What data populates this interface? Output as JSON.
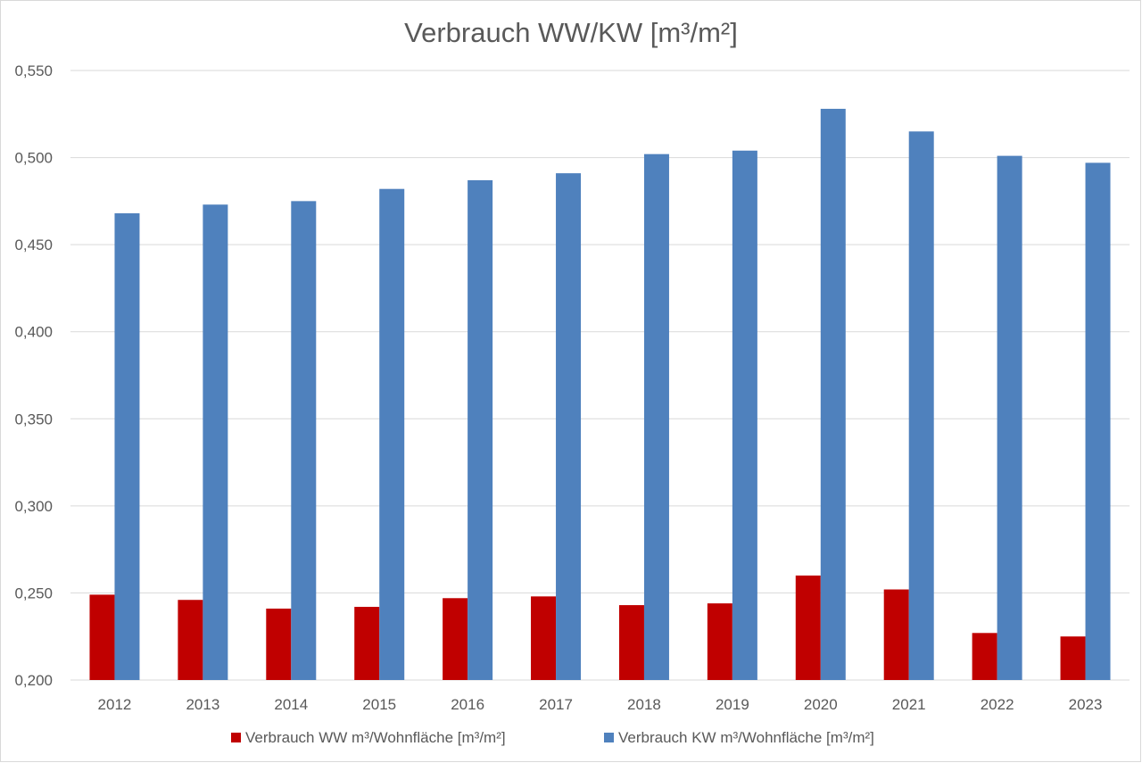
{
  "chart_data": {
    "type": "bar",
    "title": "Verbrauch WW/KW [m³/m²]",
    "xlabel": "",
    "ylabel": "",
    "categories": [
      "2012",
      "2013",
      "2014",
      "2015",
      "2016",
      "2017",
      "2018",
      "2019",
      "2020",
      "2021",
      "2022",
      "2023"
    ],
    "series": [
      {
        "name": "Verbrauch WW m³/Wohnfläche [m³/m²]",
        "color": "#c00000",
        "values": [
          0.249,
          0.246,
          0.241,
          0.242,
          0.247,
          0.248,
          0.243,
          0.244,
          0.26,
          0.252,
          0.227,
          0.225
        ]
      },
      {
        "name": "Verbrauch KW m³/Wohnfläche [m³/m²]",
        "color": "#4f81bd",
        "values": [
          0.468,
          0.473,
          0.475,
          0.482,
          0.487,
          0.491,
          0.502,
          0.504,
          0.528,
          0.515,
          0.501,
          0.497
        ]
      }
    ],
    "ylim": [
      0.2,
      0.55
    ],
    "yticks": [
      "0,200",
      "0,250",
      "0,300",
      "0,350",
      "0,400",
      "0,450",
      "0,500",
      "0,550"
    ],
    "grid": true,
    "legend_position": "bottom"
  }
}
